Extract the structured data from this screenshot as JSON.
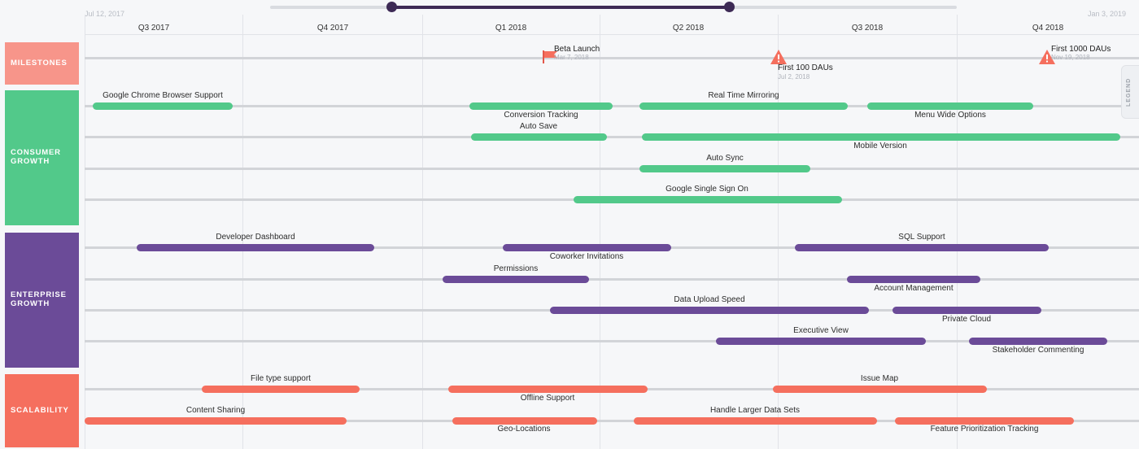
{
  "range_start": "Jul 12, 2017",
  "range_end": "Jan 3, 2019",
  "quarters": [
    "Q3 2017",
    "Q4 2017",
    "Q1 2018",
    "Q2 2018",
    "Q3 2018",
    "Q4 2018"
  ],
  "legend_label": "LEGEND",
  "lanes": {
    "milestones": "MILESTONES",
    "consumer": "CONSUMER GROWTH",
    "enterprise": "ENTERPRISE GROWTH",
    "scalability": "SCALABILITY"
  },
  "milestones": [
    {
      "title": "Beta Launch",
      "date": "Mar 7, 2018",
      "icon": "flag-icon",
      "color": "#f56f5e"
    },
    {
      "title": "First 100 DAUs",
      "date": "Jul 2, 2018",
      "icon": "warning-icon",
      "color": "#f56f5e"
    },
    {
      "title": "First 1000 DAUs",
      "date": "Nov 19, 2018",
      "icon": "warning-icon",
      "color": "#f56f5e"
    }
  ],
  "consumer_bars": [
    "Google Chrome Browser Support",
    "Conversion Tracking",
    "Real Time Mirroring",
    "Menu Wide Options",
    "Auto Save",
    "Mobile Version",
    "Auto Sync",
    "Google Single Sign On"
  ],
  "enterprise_bars": [
    "Developer Dashboard",
    "Coworker Invitations",
    "SQL Support",
    "Permissions",
    "Account Management",
    "Data Upload Speed",
    "Private Cloud",
    "Executive View",
    "Stakeholder Commenting"
  ],
  "scalability_bars": [
    "File type support",
    "Offline Support",
    "Issue Map",
    "Content Sharing",
    "Geo-Locations",
    "Handle Larger Data Sets",
    "Feature Prioritization Tracking"
  ],
  "colors": {
    "milestones": "#f7958a",
    "consumer": "#52c98a",
    "enterprise": "#6b4b98",
    "scalability": "#f56f5e",
    "timeline_handle": "#3d2a55"
  }
}
